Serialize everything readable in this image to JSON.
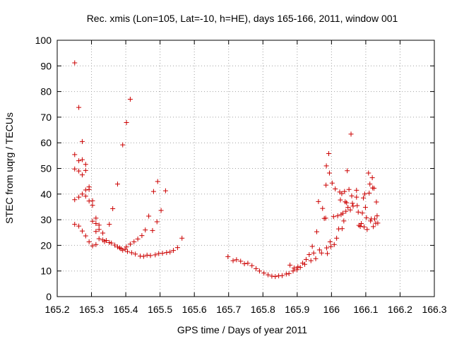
{
  "chart_data": {
    "type": "scatter",
    "title": "Rec. xmis (Lon=105, Lat=-10, h=HE), days 165-166, 2011, window 001",
    "xlabel": "GPS time / Days of year 2011",
    "ylabel": "STEC from uqrg / TECUs",
    "xlim": [
      165.2,
      166.3
    ],
    "ylim": [
      0,
      100
    ],
    "xticks": [
      "165.2",
      "165.3",
      "165.4",
      "165.5",
      "165.6",
      "165.7",
      "165.8",
      "165.9",
      "166",
      "166.1",
      "166.2",
      "166.3"
    ],
    "xtick_values": [
      165.2,
      165.3,
      165.4,
      165.5,
      165.6,
      165.7,
      165.8,
      165.9,
      166.0,
      166.1,
      166.2,
      166.3
    ],
    "yticks": [
      "0",
      "10",
      "20",
      "30",
      "40",
      "50",
      "60",
      "70",
      "80",
      "90",
      "100"
    ],
    "ytick_values": [
      0,
      10,
      20,
      30,
      40,
      50,
      60,
      70,
      80,
      90,
      100
    ],
    "grid": true,
    "marker": "plus",
    "color": "#cc0000",
    "points": [
      [
        165.251,
        91.2
      ],
      [
        165.251,
        55.4
      ],
      [
        165.251,
        49.8
      ],
      [
        165.251,
        37.8
      ],
      [
        165.251,
        28.2
      ],
      [
        165.263,
        73.8
      ],
      [
        165.263,
        53.0
      ],
      [
        165.263,
        49.0
      ],
      [
        165.263,
        38.8
      ],
      [
        165.263,
        27.5
      ],
      [
        165.273,
        60.5
      ],
      [
        165.273,
        53.4
      ],
      [
        165.273,
        47.5
      ],
      [
        165.273,
        40.0
      ],
      [
        165.273,
        25.6
      ],
      [
        165.283,
        51.6
      ],
      [
        165.283,
        49.2
      ],
      [
        165.283,
        41.6
      ],
      [
        165.283,
        39.2
      ],
      [
        165.283,
        23.7
      ],
      [
        165.293,
        42.8
      ],
      [
        165.293,
        41.8
      ],
      [
        165.293,
        37.3
      ],
      [
        165.293,
        21.4
      ],
      [
        165.303,
        37.4
      ],
      [
        165.303,
        35.6
      ],
      [
        165.303,
        29.4
      ],
      [
        165.303,
        19.8
      ],
      [
        165.313,
        30.6
      ],
      [
        165.313,
        28.5
      ],
      [
        165.313,
        25.4
      ],
      [
        165.313,
        20.3
      ],
      [
        165.322,
        27.9
      ],
      [
        165.322,
        26.2
      ],
      [
        165.322,
        22.6
      ],
      [
        165.333,
        24.8
      ],
      [
        165.333,
        22.1
      ],
      [
        165.338,
        21.5
      ],
      [
        165.343,
        21.9
      ],
      [
        165.352,
        28.2
      ],
      [
        165.352,
        21.1
      ],
      [
        165.358,
        20.9
      ],
      [
        165.362,
        34.3
      ],
      [
        165.368,
        20.1
      ],
      [
        165.376,
        43.9
      ],
      [
        165.376,
        19.4
      ],
      [
        165.382,
        19.0
      ],
      [
        165.386,
        18.7
      ],
      [
        165.391,
        59.2
      ],
      [
        165.391,
        18.1
      ],
      [
        165.398,
        18.5
      ],
      [
        165.402,
        67.9
      ],
      [
        165.402,
        19.4
      ],
      [
        165.405,
        17.6
      ],
      [
        165.413,
        77.0
      ],
      [
        165.413,
        20.5
      ],
      [
        165.417,
        17.1
      ],
      [
        165.424,
        21.4
      ],
      [
        165.428,
        16.6
      ],
      [
        165.435,
        22.5
      ],
      [
        165.442,
        15.8
      ],
      [
        165.447,
        23.8
      ],
      [
        165.452,
        15.7
      ],
      [
        165.457,
        26.0
      ],
      [
        165.462,
        16.2
      ],
      [
        165.467,
        31.4
      ],
      [
        165.472,
        16.0
      ],
      [
        165.478,
        25.8
      ],
      [
        165.481,
        41.0
      ],
      [
        165.486,
        16.3
      ],
      [
        165.491,
        29.2
      ],
      [
        165.493,
        44.9
      ],
      [
        165.496,
        16.8
      ],
      [
        165.503,
        33.6
      ],
      [
        165.507,
        16.9
      ],
      [
        165.516,
        41.3
      ],
      [
        165.519,
        17.2
      ],
      [
        165.529,
        17.4
      ],
      [
        165.539,
        18.0
      ],
      [
        165.551,
        19.1
      ],
      [
        165.564,
        22.8
      ],
      [
        165.698,
        15.6
      ],
      [
        165.713,
        14.0
      ],
      [
        165.723,
        14.4
      ],
      [
        165.735,
        13.8
      ],
      [
        165.746,
        12.8
      ],
      [
        165.756,
        13.0
      ],
      [
        165.768,
        12.1
      ],
      [
        165.78,
        10.9
      ],
      [
        165.79,
        10.0
      ],
      [
        165.803,
        9.2
      ],
      [
        165.815,
        8.5
      ],
      [
        165.826,
        8.0
      ],
      [
        165.836,
        7.8
      ],
      [
        165.846,
        8.1
      ],
      [
        165.856,
        8.2
      ],
      [
        165.868,
        8.8
      ],
      [
        165.876,
        9.0
      ],
      [
        165.879,
        12.3
      ],
      [
        165.888,
        10.0
      ],
      [
        165.891,
        11.2
      ],
      [
        165.899,
        10.5
      ],
      [
        165.902,
        11.6
      ],
      [
        165.909,
        11.4
      ],
      [
        165.916,
        13.1
      ],
      [
        165.922,
        12.6
      ],
      [
        165.926,
        14.5
      ],
      [
        165.935,
        16.4
      ],
      [
        165.94,
        14.0
      ],
      [
        165.944,
        19.6
      ],
      [
        165.948,
        17.0
      ],
      [
        165.954,
        14.8
      ],
      [
        165.957,
        25.3
      ],
      [
        165.962,
        37.1
      ],
      [
        165.965,
        18.2
      ],
      [
        165.971,
        17.0
      ],
      [
        165.974,
        34.4
      ],
      [
        165.979,
        30.5
      ],
      [
        165.983,
        30.6
      ],
      [
        165.984,
        43.5
      ],
      [
        165.985,
        51.0
      ],
      [
        165.986,
        19.0
      ],
      [
        165.988,
        16.8
      ],
      [
        165.992,
        55.8
      ],
      [
        165.994,
        48.2
      ],
      [
        165.996,
        21.4
      ],
      [
        165.998,
        19.5
      ],
      [
        166.002,
        44.3
      ],
      [
        166.006,
        31.2
      ],
      [
        166.008,
        20.3
      ],
      [
        166.011,
        42.0
      ],
      [
        166.015,
        22.8
      ],
      [
        166.018,
        31.5
      ],
      [
        166.021,
        26.4
      ],
      [
        166.024,
        40.8
      ],
      [
        166.026,
        37.7
      ],
      [
        166.028,
        32.0
      ],
      [
        166.03,
        40.2
      ],
      [
        166.031,
        26.5
      ],
      [
        166.033,
        32.5
      ],
      [
        166.036,
        29.5
      ],
      [
        166.038,
        41.0
      ],
      [
        166.04,
        37.0
      ],
      [
        166.042,
        33.3
      ],
      [
        166.044,
        36.6
      ],
      [
        166.046,
        49.1
      ],
      [
        166.048,
        34.8
      ],
      [
        166.051,
        41.8
      ],
      [
        166.055,
        33.8
      ],
      [
        166.057,
        63.4
      ],
      [
        166.059,
        39.3
      ],
      [
        166.061,
        36.4
      ],
      [
        166.063,
        35.3
      ],
      [
        166.073,
        41.5
      ],
      [
        166.073,
        38.8
      ],
      [
        166.075,
        35.5
      ],
      [
        166.078,
        33.0
      ],
      [
        166.08,
        27.8
      ],
      [
        166.084,
        27.4
      ],
      [
        166.087,
        28.5
      ],
      [
        166.09,
        32.6
      ],
      [
        166.093,
        38.5
      ],
      [
        166.095,
        27.2
      ],
      [
        166.097,
        40.0
      ],
      [
        166.099,
        34.8
      ],
      [
        166.102,
        30.8
      ],
      [
        166.104,
        26.2
      ],
      [
        166.108,
        48.2
      ],
      [
        166.11,
        40.4
      ],
      [
        166.112,
        43.9
      ],
      [
        166.114,
        29.5
      ],
      [
        166.116,
        30.3
      ],
      [
        166.119,
        46.4
      ],
      [
        166.12,
        42.4
      ],
      [
        166.122,
        27.3
      ],
      [
        166.124,
        42.3
      ],
      [
        166.126,
        30.3
      ],
      [
        166.129,
        28.6
      ],
      [
        166.131,
        36.9
      ],
      [
        166.133,
        31.5
      ],
      [
        166.135,
        28.7
      ]
    ]
  }
}
